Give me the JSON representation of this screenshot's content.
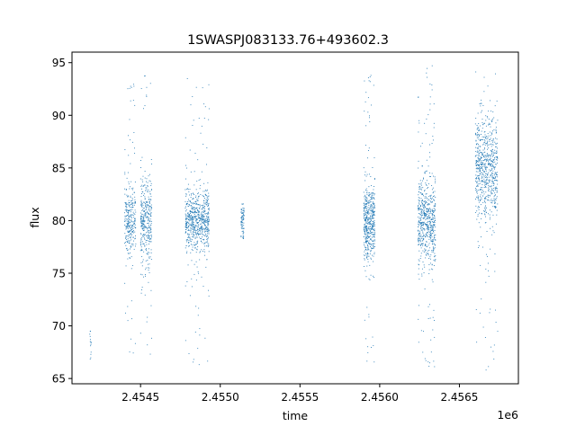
{
  "chart_data": {
    "type": "scatter",
    "title": "1SWASPJ083133.76+493602.3",
    "xlabel": "time",
    "ylabel": "flux",
    "x_offset_label": "1e6",
    "xlim": [
      2.45407,
      2.45687
    ],
    "ylim": [
      64.5,
      96.0
    ],
    "x_ticks": [
      {
        "value": 2.4545,
        "label": "2.4545"
      },
      {
        "value": 2.455,
        "label": "2.4550"
      },
      {
        "value": 2.4555,
        "label": "2.4555"
      },
      {
        "value": 2.456,
        "label": "2.4560"
      },
      {
        "value": 2.4565,
        "label": "2.4565"
      }
    ],
    "y_ticks": [
      {
        "value": 65,
        "label": "65"
      },
      {
        "value": 70,
        "label": "70"
      },
      {
        "value": 75,
        "label": "75"
      },
      {
        "value": 80,
        "label": "80"
      },
      {
        "value": 85,
        "label": "85"
      },
      {
        "value": 90,
        "label": "90"
      },
      {
        "value": 95,
        "label": "95"
      }
    ],
    "grid": false,
    "marker_color": "#1f77b4",
    "series": [
      {
        "clusters": [
          {
            "x": [
              2.45418,
              2.45419
            ],
            "y_center": 68.2,
            "y_spread": 0.9,
            "y_min": 65.8,
            "y_max": 69.5,
            "count": 14
          },
          {
            "x": [
              2.4544,
              2.45447
            ],
            "y_center": 79.8,
            "y_spread": 1.6,
            "y_min": 66.0,
            "y_max": 93.2,
            "count": 300
          },
          {
            "x": [
              2.4545,
              2.45457
            ],
            "y_center": 80.0,
            "y_spread": 2.0,
            "y_min": 67.0,
            "y_max": 94.5,
            "count": 360
          },
          {
            "x": [
              2.45478,
              2.45493
            ],
            "y_center": 80.0,
            "y_spread": 1.4,
            "y_min": 66.0,
            "y_max": 93.5,
            "count": 700
          },
          {
            "x": [
              2.45513,
              2.45515
            ],
            "y_center": 80.0,
            "y_spread": 0.9,
            "y_min": 78.0,
            "y_max": 81.6,
            "count": 80
          },
          {
            "x": [
              2.4559,
              2.45597
            ],
            "y_center": 80.0,
            "y_spread": 1.8,
            "y_min": 66.0,
            "y_max": 94.0,
            "count": 520
          },
          {
            "x": [
              2.45624,
              2.45635
            ],
            "y_center": 80.0,
            "y_spread": 2.0,
            "y_min": 66.0,
            "y_max": 94.8,
            "count": 620
          },
          {
            "x": [
              2.4566,
              2.45674
            ],
            "y_center": 85.0,
            "y_spread": 2.4,
            "y_min": 65.8,
            "y_max": 94.7,
            "count": 700
          }
        ]
      }
    ]
  }
}
